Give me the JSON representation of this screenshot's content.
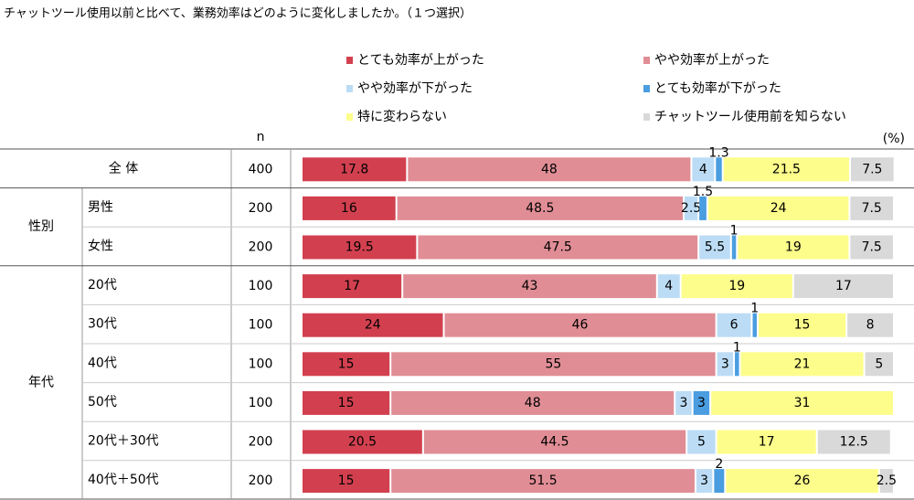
{
  "chart_data": {
    "type": "stacked-bar",
    "title": "チャットツール使用以前と比べて、業務効率はどのように変化しましたか。（１つ選択）",
    "n_label": "n",
    "unit": "(%)",
    "categories": [
      "全 体",
      "男性",
      "女性",
      "20代",
      "30代",
      "40代",
      "50代",
      "20代＋30代",
      "40代＋50代"
    ],
    "n": [
      400,
      200,
      200,
      100,
      100,
      100,
      100,
      200,
      200
    ],
    "groups": [
      {
        "name": "性別",
        "size": 2
      },
      {
        "name": "年代",
        "size": 6
      }
    ],
    "xlim": [
      0,
      100
    ],
    "series": [
      {
        "name": "とても効率が上がった",
        "color": "#d2404f",
        "values": [
          17.8,
          16.0,
          19.5,
          17.0,
          24.0,
          15.0,
          15.0,
          20.5,
          15.0
        ]
      },
      {
        "name": "やや効率が上がった",
        "color": "#e08d95",
        "values": [
          48.0,
          48.5,
          47.5,
          43.0,
          46.0,
          55.0,
          48.0,
          44.5,
          51.5
        ]
      },
      {
        "name": "やや効率が下がった",
        "color": "#bcdcf5",
        "values": [
          4.0,
          2.5,
          5.5,
          4.0,
          6.0,
          3.0,
          3.0,
          5.0,
          3.0
        ]
      },
      {
        "name": "とても効率が下がった",
        "color": "#4a9de0",
        "values": [
          1.3,
          1.5,
          1.0,
          null,
          1.0,
          1.0,
          3.0,
          null,
          2.0
        ]
      },
      {
        "name": "特に変わらない",
        "color": "#fdfd8c",
        "values": [
          21.5,
          24.0,
          19.0,
          19.0,
          15.0,
          21.0,
          31.0,
          17.0,
          26.0
        ]
      },
      {
        "name": "チャットツール使用前を知らない",
        "color": "#d9d9d9",
        "values": [
          7.5,
          7.5,
          7.5,
          17.0,
          8.0,
          5.0,
          null,
          12.5,
          2.5
        ]
      }
    ]
  }
}
